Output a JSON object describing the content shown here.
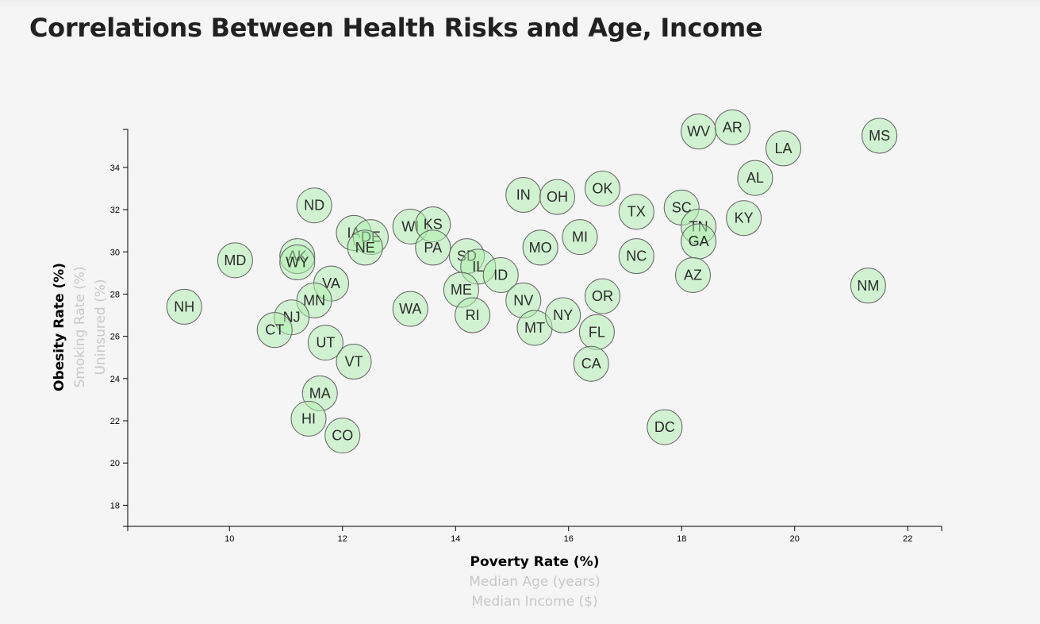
{
  "page": {
    "title": "Correlations Between Health Risks and Age, Income"
  },
  "chart_data": {
    "type": "scatter",
    "xlim": [
      8.2,
      22.6
    ],
    "ylim": [
      17,
      35.8
    ],
    "x_ticks": [
      10,
      12,
      14,
      16,
      18,
      20,
      22
    ],
    "y_ticks": [
      18,
      20,
      22,
      24,
      26,
      28,
      30,
      32,
      34
    ],
    "x_axis_labels": [
      {
        "text": "Poverty Rate (%)",
        "active": true
      },
      {
        "text": "Median Age (years)",
        "active": false
      },
      {
        "text": "Median Income ($)",
        "active": false
      }
    ],
    "y_axis_labels": [
      {
        "text": "Obesity Rate (%)",
        "active": true
      },
      {
        "text": "Smoking Rate (%)",
        "active": false
      },
      {
        "text": "Uninsured (%)",
        "active": false
      }
    ],
    "grid": false,
    "marker_color": "#aef0ad",
    "points": [
      {
        "abbr": "NH",
        "x": 9.2,
        "y": 27.4
      },
      {
        "abbr": "MD",
        "x": 10.1,
        "y": 29.6
      },
      {
        "abbr": "AK",
        "x": 11.2,
        "y": 29.8
      },
      {
        "abbr": "WY",
        "x": 11.2,
        "y": 29.5
      },
      {
        "abbr": "ND",
        "x": 11.5,
        "y": 32.2
      },
      {
        "abbr": "VA",
        "x": 11.8,
        "y": 28.5
      },
      {
        "abbr": "MN",
        "x": 11.5,
        "y": 27.7
      },
      {
        "abbr": "NJ",
        "x": 11.1,
        "y": 26.9
      },
      {
        "abbr": "CT",
        "x": 10.8,
        "y": 26.3
      },
      {
        "abbr": "UT",
        "x": 11.7,
        "y": 25.7
      },
      {
        "abbr": "VT",
        "x": 12.2,
        "y": 24.8
      },
      {
        "abbr": "MA",
        "x": 11.6,
        "y": 23.3
      },
      {
        "abbr": "HI",
        "x": 11.4,
        "y": 22.1
      },
      {
        "abbr": "CO",
        "x": 12.0,
        "y": 21.3
      },
      {
        "abbr": "IA",
        "x": 12.2,
        "y": 30.9
      },
      {
        "abbr": "DE",
        "x": 12.5,
        "y": 30.7
      },
      {
        "abbr": "NE",
        "x": 12.4,
        "y": 30.2
      },
      {
        "abbr": "WI",
        "x": 13.2,
        "y": 31.2
      },
      {
        "abbr": "KS",
        "x": 13.6,
        "y": 31.3
      },
      {
        "abbr": "PA",
        "x": 13.6,
        "y": 30.2
      },
      {
        "abbr": "WA",
        "x": 13.2,
        "y": 27.3
      },
      {
        "abbr": "SD",
        "x": 14.2,
        "y": 29.8
      },
      {
        "abbr": "IL",
        "x": 14.4,
        "y": 29.3
      },
      {
        "abbr": "ID",
        "x": 14.8,
        "y": 28.9
      },
      {
        "abbr": "ME",
        "x": 14.1,
        "y": 28.2
      },
      {
        "abbr": "RI",
        "x": 14.3,
        "y": 27.0
      },
      {
        "abbr": "IN",
        "x": 15.2,
        "y": 32.7
      },
      {
        "abbr": "OH",
        "x": 15.8,
        "y": 32.6
      },
      {
        "abbr": "MO",
        "x": 15.5,
        "y": 30.2
      },
      {
        "abbr": "NV",
        "x": 15.2,
        "y": 27.7
      },
      {
        "abbr": "MT",
        "x": 15.4,
        "y": 26.4
      },
      {
        "abbr": "NY",
        "x": 15.9,
        "y": 27.0
      },
      {
        "abbr": "OK",
        "x": 16.6,
        "y": 33.0
      },
      {
        "abbr": "MI",
        "x": 16.2,
        "y": 30.7
      },
      {
        "abbr": "OR",
        "x": 16.6,
        "y": 27.9
      },
      {
        "abbr": "FL",
        "x": 16.5,
        "y": 26.2
      },
      {
        "abbr": "CA",
        "x": 16.4,
        "y": 24.7
      },
      {
        "abbr": "TX",
        "x": 17.2,
        "y": 31.9
      },
      {
        "abbr": "NC",
        "x": 17.2,
        "y": 29.8
      },
      {
        "abbr": "DC",
        "x": 17.7,
        "y": 21.7
      },
      {
        "abbr": "WV",
        "x": 18.3,
        "y": 35.7
      },
      {
        "abbr": "AR",
        "x": 18.9,
        "y": 35.9
      },
      {
        "abbr": "SC",
        "x": 18.0,
        "y": 32.1
      },
      {
        "abbr": "TN",
        "x": 18.3,
        "y": 31.2
      },
      {
        "abbr": "GA",
        "x": 18.3,
        "y": 30.5
      },
      {
        "abbr": "AZ",
        "x": 18.2,
        "y": 28.9
      },
      {
        "abbr": "KY",
        "x": 19.1,
        "y": 31.6
      },
      {
        "abbr": "AL",
        "x": 19.3,
        "y": 33.5
      },
      {
        "abbr": "LA",
        "x": 19.8,
        "y": 34.9
      },
      {
        "abbr": "MS",
        "x": 21.5,
        "y": 35.5
      },
      {
        "abbr": "NM",
        "x": 21.3,
        "y": 28.4
      }
    ]
  }
}
